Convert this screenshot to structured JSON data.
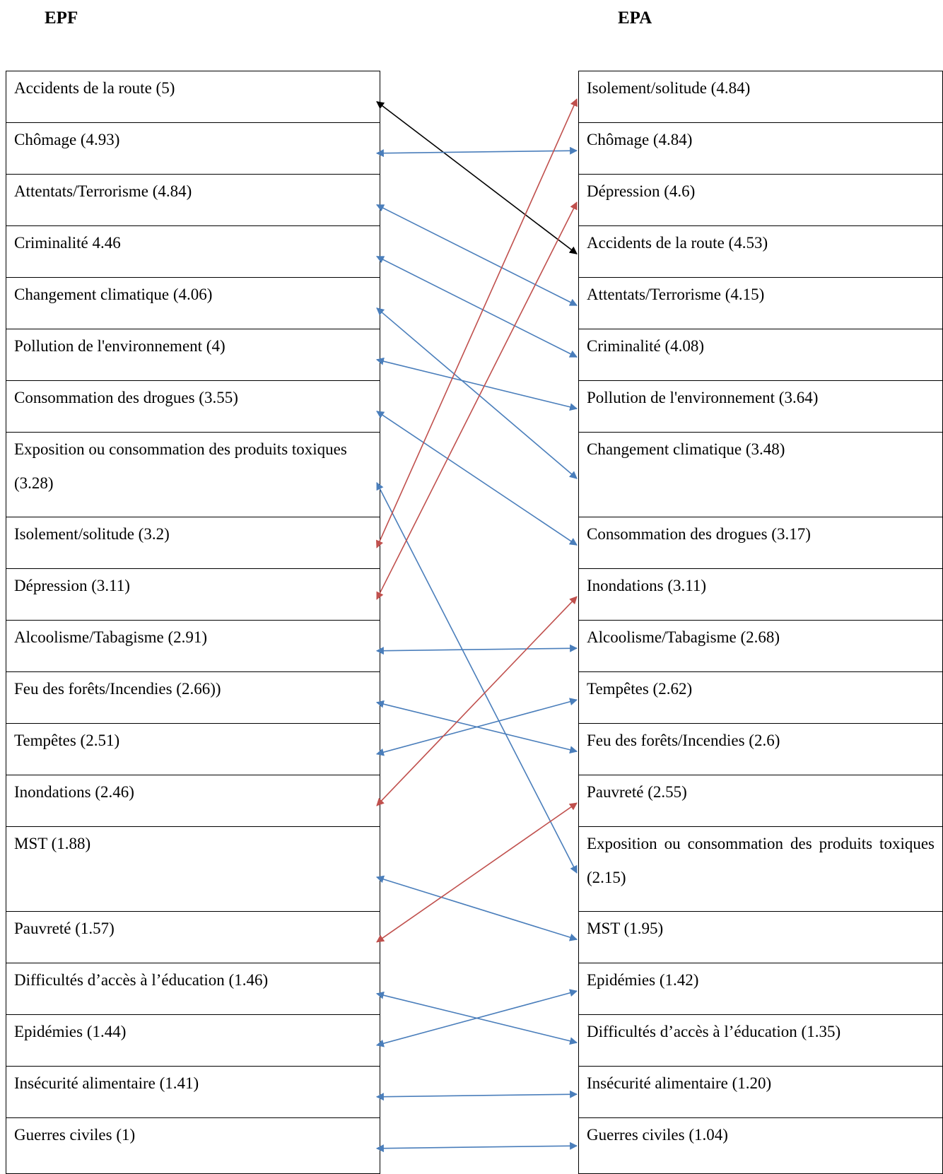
{
  "headings": {
    "left": "EPF",
    "right": "EPA"
  },
  "left_items": [
    "Accidents de la route (5)",
    "Chômage (4.93)",
    "Attentats/Terrorisme (4.84)",
    "Criminalité 4.46",
    "Changement climatique (4.06)",
    "Pollution de l'environnement (4)",
    "Consommation des drogues (3.55)",
    "Exposition ou consommation des produits toxiques (3.28)",
    "Isolement/solitude (3.2)",
    "Dépression (3.11)",
    "Alcoolisme/Tabagisme (2.91)",
    "Feu des forêts/Incendies (2.66))",
    "Tempêtes (2.51)",
    "Inondations (2.46)",
    "MST (1.88)",
    "Pauvreté (1.57)",
    "Difficultés d’accès à l’éducation (1.46)",
    "Epidémies (1.44)",
    "Insécurité alimentaire (1.41)",
    "Guerres civiles (1)"
  ],
  "right_items": [
    "Isolement/solitude (4.84)",
    "Chômage (4.84)",
    "Dépression (4.6)",
    "Accidents de la route (4.53)",
    "Attentats/Terrorisme (4.15)",
    "Criminalité (4.08)",
    "Pollution de l'environnement (3.64)",
    "Changement climatique (3.48)",
    "Consommation des drogues (3.17)",
    "Inondations (3.11)",
    "Alcoolisme/Tabagisme (2.68)",
    "Tempêtes (2.62)",
    "Feu des forêts/Incendies (2.6)",
    "Pauvreté (2.55)",
    "Exposition ou consommation des produits toxiques (2.15)",
    "MST (1.95)",
    "Epidémies (1.42)",
    "Difficultés d’accès à l’éducation (1.35)",
    "Insécurité alimentaire (1.20)",
    "Guerres civiles (1.04)"
  ],
  "links": [
    {
      "from": 0,
      "to": 3,
      "color": "#000000"
    },
    {
      "from": 1,
      "to": 1,
      "color": "#4a7ebb"
    },
    {
      "from": 2,
      "to": 4,
      "color": "#4a7ebb"
    },
    {
      "from": 3,
      "to": 5,
      "color": "#4a7ebb"
    },
    {
      "from": 4,
      "to": 7,
      "color": "#4a7ebb"
    },
    {
      "from": 5,
      "to": 6,
      "color": "#4a7ebb"
    },
    {
      "from": 6,
      "to": 8,
      "color": "#4a7ebb"
    },
    {
      "from": 7,
      "to": 14,
      "color": "#4a7ebb"
    },
    {
      "from": 8,
      "to": 0,
      "color": "#c0504d"
    },
    {
      "from": 9,
      "to": 2,
      "color": "#c0504d"
    },
    {
      "from": 10,
      "to": 10,
      "color": "#4a7ebb"
    },
    {
      "from": 11,
      "to": 12,
      "color": "#4a7ebb"
    },
    {
      "from": 12,
      "to": 11,
      "color": "#4a7ebb"
    },
    {
      "from": 13,
      "to": 9,
      "color": "#c0504d"
    },
    {
      "from": 14,
      "to": 15,
      "color": "#4a7ebb"
    },
    {
      "from": 15,
      "to": 13,
      "color": "#c0504d"
    },
    {
      "from": 16,
      "to": 17,
      "color": "#4a7ebb"
    },
    {
      "from": 17,
      "to": 16,
      "color": "#4a7ebb"
    },
    {
      "from": 18,
      "to": 18,
      "color": "#4a7ebb"
    },
    {
      "from": 19,
      "to": 19,
      "color": "#4a7ebb"
    }
  ]
}
